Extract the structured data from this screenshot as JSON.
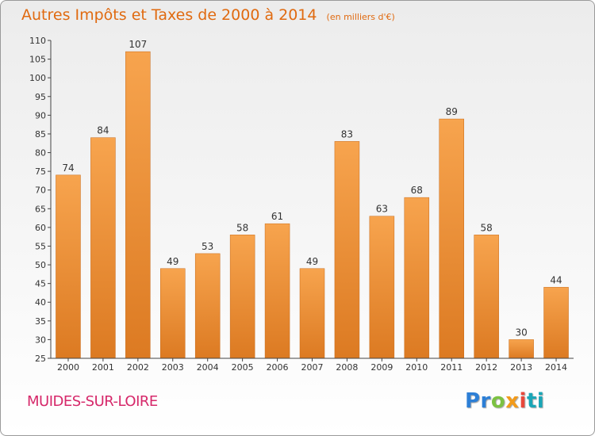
{
  "title": "Autres Impôts et Taxes de 2000 à 2014",
  "subtitle": "(en milliers d'€)",
  "city": "MUIDES-SUR-LOIRE",
  "logo": {
    "p1": "Pr",
    "p2": "o",
    "p3": "x",
    "p4": "i",
    "p5": "ti"
  },
  "colors": {
    "bar_top": "#f7a44e",
    "bar_bottom": "#dc7a22",
    "title": "#e06a10",
    "city": "#d6286a"
  },
  "chart_data": {
    "type": "bar",
    "categories": [
      "2000",
      "2001",
      "2002",
      "2003",
      "2004",
      "2005",
      "2006",
      "2007",
      "2008",
      "2009",
      "2010",
      "2011",
      "2012",
      "2013",
      "2014"
    ],
    "values": [
      74,
      84,
      107,
      49,
      53,
      58,
      61,
      49,
      83,
      63,
      68,
      89,
      58,
      30,
      44
    ],
    "ylim": [
      25,
      110
    ],
    "yticks": [
      25,
      30,
      35,
      40,
      45,
      50,
      55,
      60,
      65,
      70,
      75,
      80,
      85,
      90,
      95,
      100,
      105,
      110
    ],
    "grid": false,
    "xlabel": "",
    "ylabel": ""
  }
}
